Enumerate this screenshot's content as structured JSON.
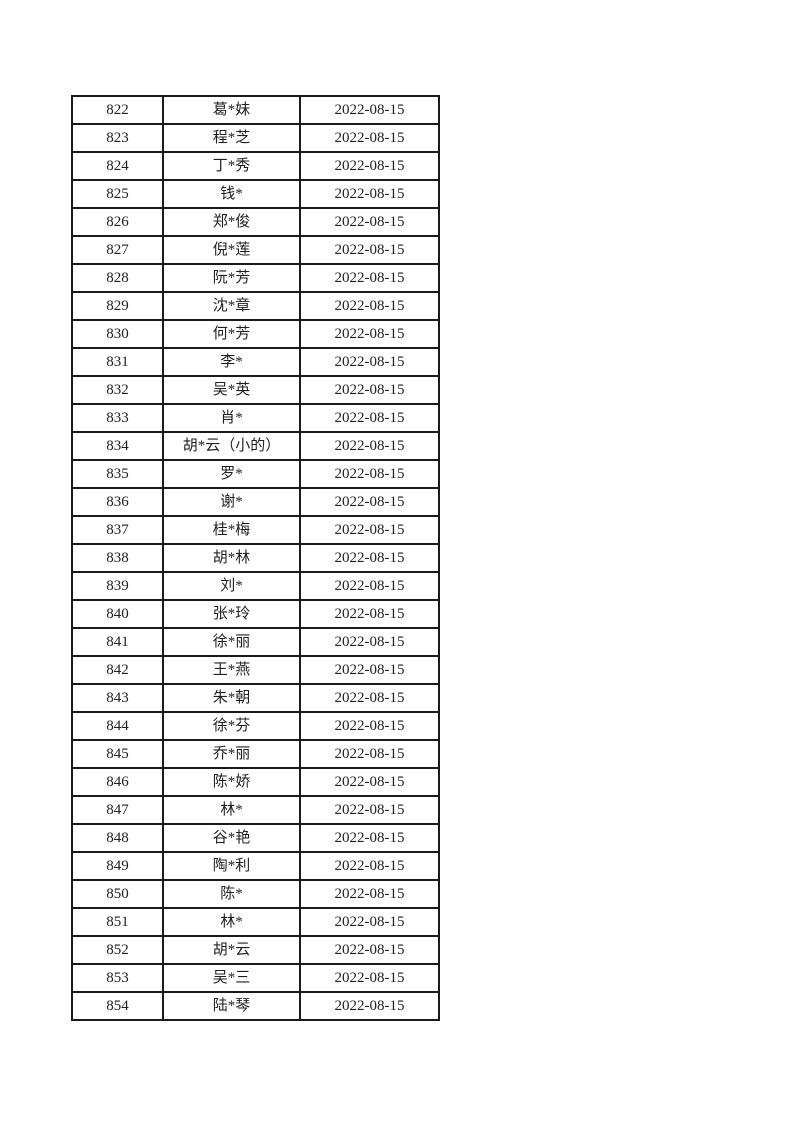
{
  "page": {
    "background": "#ffffff"
  },
  "table": {
    "border_color": "#1a1a1a",
    "text_color": "#1f1f1f",
    "date_shared": "2022-08-15",
    "first_index": "822",
    "last_index": "854",
    "rows": [
      {
        "index": "822",
        "name": "葛*妹",
        "date": "2022-08-15"
      },
      {
        "index": "823",
        "name": "程*芝",
        "date": "2022-08-15"
      },
      {
        "index": "824",
        "name": "丁*秀",
        "date": "2022-08-15"
      },
      {
        "index": "825",
        "name": "钱*",
        "date": "2022-08-15"
      },
      {
        "index": "826",
        "name": "郑*俊",
        "date": "2022-08-15"
      },
      {
        "index": "827",
        "name": "倪*莲",
        "date": "2022-08-15"
      },
      {
        "index": "828",
        "name": "阮*芳",
        "date": "2022-08-15"
      },
      {
        "index": "829",
        "name": "沈*章",
        "date": "2022-08-15"
      },
      {
        "index": "830",
        "name": "何*芳",
        "date": "2022-08-15"
      },
      {
        "index": "831",
        "name": "李*",
        "date": "2022-08-15"
      },
      {
        "index": "832",
        "name": "吴*英",
        "date": "2022-08-15"
      },
      {
        "index": "833",
        "name": "肖*",
        "date": "2022-08-15"
      },
      {
        "index": "834",
        "name": "胡*云（小的）",
        "date": "2022-08-15"
      },
      {
        "index": "835",
        "name": "罗*",
        "date": "2022-08-15"
      },
      {
        "index": "836",
        "name": "谢*",
        "date": "2022-08-15"
      },
      {
        "index": "837",
        "name": "桂*梅",
        "date": "2022-08-15"
      },
      {
        "index": "838",
        "name": "胡*林",
        "date": "2022-08-15"
      },
      {
        "index": "839",
        "name": "刘*",
        "date": "2022-08-15"
      },
      {
        "index": "840",
        "name": "张*玲",
        "date": "2022-08-15"
      },
      {
        "index": "841",
        "name": "徐*丽",
        "date": "2022-08-15"
      },
      {
        "index": "842",
        "name": "王*燕",
        "date": "2022-08-15"
      },
      {
        "index": "843",
        "name": "朱*朝",
        "date": "2022-08-15"
      },
      {
        "index": "844",
        "name": "徐*芬",
        "date": "2022-08-15"
      },
      {
        "index": "845",
        "name": "乔*丽",
        "date": "2022-08-15"
      },
      {
        "index": "846",
        "name": "陈*娇",
        "date": "2022-08-15"
      },
      {
        "index": "847",
        "name": "林*",
        "date": "2022-08-15"
      },
      {
        "index": "848",
        "name": "谷*艳",
        "date": "2022-08-15"
      },
      {
        "index": "849",
        "name": "陶*利",
        "date": "2022-08-15"
      },
      {
        "index": "850",
        "name": "陈*",
        "date": "2022-08-15"
      },
      {
        "index": "851",
        "name": "林*",
        "date": "2022-08-15"
      },
      {
        "index": "852",
        "name": "胡*云",
        "date": "2022-08-15"
      },
      {
        "index": "853",
        "name": "吴*三",
        "date": "2022-08-15"
      },
      {
        "index": "854",
        "name": "陆*琴",
        "date": "2022-08-15"
      }
    ]
  }
}
